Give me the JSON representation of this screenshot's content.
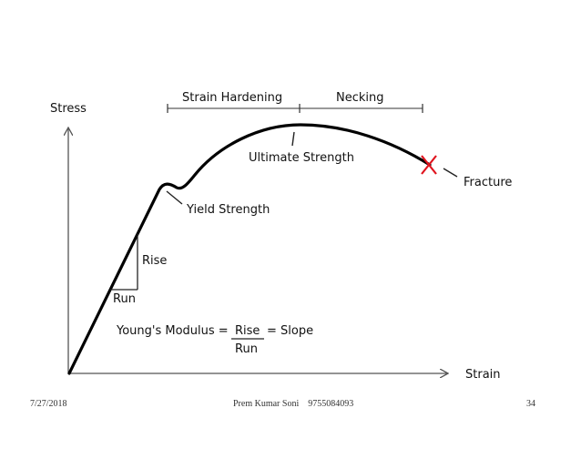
{
  "diagram": {
    "y_axis_label": "Stress",
    "x_axis_label": "Strain",
    "strain_hardening": "Strain Hardening",
    "necking": "Necking",
    "ultimate_strength": "Ultimate Strength",
    "yield_strength": "Yield Strength",
    "fracture": "Fracture",
    "rise": "Rise",
    "run": "Run",
    "equation": {
      "lhs": "Young's Modulus =",
      "numerator": "Rise",
      "denominator": "Run",
      "rhs": "= Slope"
    },
    "colors": {
      "curve": "#000000",
      "fracture_mark": "#e0141e",
      "axes": "#555555"
    }
  },
  "footer": {
    "date": "7/27/2018",
    "author": "Prem Kumar Soni",
    "phone": "9755084093",
    "page": "34"
  }
}
